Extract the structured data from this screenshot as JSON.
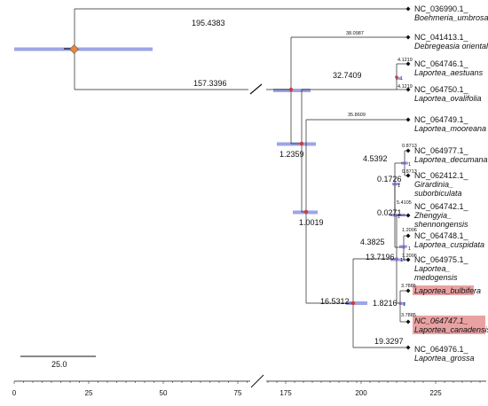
{
  "tips": [
    {
      "id": "NC_036990.1_",
      "species": "Boehmeria_umbrosa",
      "highlighted": false
    },
    {
      "id": "NC_041413.1_",
      "species": "Debregeasia orientalis",
      "highlighted": false
    },
    {
      "id": "NC_064746.1_",
      "species": "Laportea_aestuans",
      "highlighted": false
    },
    {
      "id": "NC_064750.1_",
      "species": "Laportea_ovalifolia",
      "highlighted": false
    },
    {
      "id": "NC_064749.1_",
      "species": "Laportea_mooreana",
      "highlighted": false
    },
    {
      "id": "NC_064977.1_",
      "species": "Laportea_decumana",
      "highlighted": false
    },
    {
      "id": "NC_062412.1_",
      "species": "Girardinia_ suborbiculata",
      "highlighted": false
    },
    {
      "id": "NC_064742.1_",
      "species": "Zhengyia_ shennongensis",
      "highlighted": false
    },
    {
      "id": "NC_064748.1_",
      "species": "Laportea_cuspidata",
      "highlighted": false
    },
    {
      "id": "NC_064975.1_",
      "species": "Laportea_ medogensis",
      "highlighted": false
    },
    {
      "id": "",
      "species": "Laportea_bulbifera",
      "highlighted": true
    },
    {
      "id": "NC_064747.1_",
      "species": "Laportea_canadensis",
      "highlighted": true
    },
    {
      "id": "NC_064976.1_",
      "species": "Laportea_grossa",
      "highlighted": false
    }
  ],
  "branch_labels": {
    "root_top": "195.4383",
    "root_bottom": "157.3396",
    "debregeasia": "38.0987",
    "aestuans_clade": "32.7409",
    "aestuans": "4.1219",
    "ovalifolia": "4.1219",
    "aestuans_node": "1",
    "mooreana": "35.8609",
    "node_a": "1.2359",
    "node_b": "1.0019",
    "decumana_clade": "4.5392",
    "decumana": "0.8713",
    "girardinia": "0.8713",
    "decumana_node": "1",
    "node_e": "0.1726",
    "node_e_support": "1",
    "zhengyia": "5.4105",
    "node_f": "0.0271",
    "node_f_support": "1",
    "cuspidata_clade": "4.3825",
    "cuspidata": "1.2006",
    "medogensis": "1.2006",
    "cuspidata_node": "1",
    "node_h": "13.7196",
    "node_h_support": "1",
    "bulbifera": "3.7885",
    "canadensis": "3.7885",
    "bulbifera_clade": "1.8216",
    "bulbifera_node": "1",
    "node_j": "16.5312",
    "grossa": "19.3297"
  },
  "scale_bar_label": "25.0",
  "axis": {
    "left_ticks": [
      "0",
      "25",
      "50",
      "75"
    ],
    "right_ticks": [
      "175",
      "200",
      "225"
    ]
  },
  "colors": {
    "hpd_bar": "#5c68d8",
    "highlight": "#e9a2a2",
    "root_node": "#e8863a",
    "node": "#cc3d3d"
  }
}
